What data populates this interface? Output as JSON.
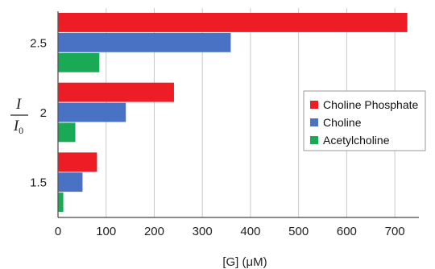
{
  "chart_data": {
    "type": "bar",
    "orientation": "horizontal",
    "title": "",
    "xlabel": "[G] (μM)",
    "ylabel_num": "I",
    "ylabel_den": "I",
    "ylabel_den_sub": "0",
    "categories": [
      "2.5",
      "2",
      "1.5"
    ],
    "series": [
      {
        "name": "Choline Phosphate",
        "color": "#ee1c25",
        "values": [
          725,
          240,
          80
        ]
      },
      {
        "name": "Choline",
        "color": "#4a72c4",
        "values": [
          358,
          140,
          50
        ]
      },
      {
        "name": "Acetylcholine",
        "color": "#1aaa55",
        "values": [
          85,
          35,
          10
        ]
      }
    ],
    "xlim": [
      0,
      750
    ],
    "xticks": [
      0,
      100,
      200,
      300,
      400,
      500,
      600,
      700
    ],
    "grid": true,
    "legend_position": "right-middle"
  }
}
